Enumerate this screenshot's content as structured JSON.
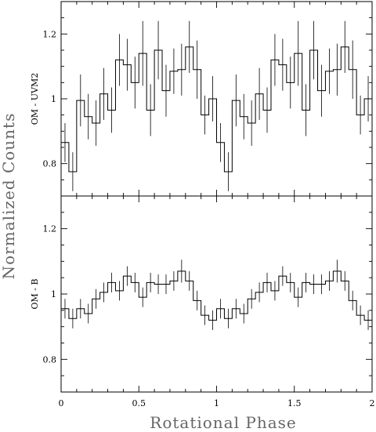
{
  "chart_data": {
    "type": "line",
    "title": "",
    "xlabel": "Rotational Phase",
    "ylabel": "Normalized Counts",
    "xlim": [
      0,
      2
    ],
    "x_ticks": [
      0,
      0.5,
      1,
      1.5,
      2
    ],
    "x_tick_labels": [
      "0",
      "0.5",
      "1",
      "1.5",
      "2"
    ],
    "style": "step-histogram-with-errorbars",
    "bins_per_cycle": 20,
    "cycles_shown": 2,
    "panels": [
      {
        "label": "OM - UVM2",
        "ylim": [
          0.7,
          1.3
        ],
        "y_ticks": [
          0.8,
          1,
          1.2
        ],
        "y_tick_labels": [
          "0.8",
          "1",
          "1.2"
        ],
        "phase_centers": [
          0.025,
          0.075,
          0.125,
          0.175,
          0.225,
          0.275,
          0.325,
          0.375,
          0.425,
          0.475,
          0.525,
          0.575,
          0.625,
          0.675,
          0.725,
          0.775,
          0.825,
          0.875,
          0.925,
          0.975
        ],
        "values": [
          0.865,
          0.775,
          0.995,
          0.945,
          0.925,
          1.015,
          0.965,
          1.12,
          1.105,
          1.05,
          1.14,
          0.965,
          1.15,
          1.025,
          1.085,
          1.09,
          1.16,
          1.09,
          0.95,
          1.0
        ],
        "errors": [
          0.06,
          0.06,
          0.08,
          0.07,
          0.07,
          0.08,
          0.07,
          0.08,
          0.08,
          0.08,
          0.1,
          0.08,
          0.09,
          0.08,
          0.07,
          0.08,
          0.08,
          0.09,
          0.06,
          0.07
        ]
      },
      {
        "label": "OM - B",
        "ylim": [
          0.7,
          1.3
        ],
        "y_ticks": [
          0.8,
          1,
          1.2
        ],
        "y_tick_labels": [
          "0.8",
          "1",
          "1.2"
        ],
        "phase_centers": [
          0.025,
          0.075,
          0.125,
          0.175,
          0.225,
          0.275,
          0.325,
          0.375,
          0.425,
          0.475,
          0.525,
          0.575,
          0.625,
          0.675,
          0.725,
          0.775,
          0.825,
          0.875,
          0.925,
          0.975
        ],
        "values": [
          0.955,
          0.925,
          0.955,
          0.94,
          0.985,
          1.005,
          1.035,
          1.01,
          1.055,
          1.035,
          0.99,
          1.035,
          1.03,
          1.03,
          1.04,
          1.07,
          1.04,
          0.98,
          0.935,
          0.92
        ],
        "errors": [
          0.03,
          0.03,
          0.03,
          0.03,
          0.03,
          0.03,
          0.03,
          0.03,
          0.03,
          0.03,
          0.03,
          0.03,
          0.03,
          0.03,
          0.03,
          0.035,
          0.03,
          0.03,
          0.03,
          0.03
        ]
      }
    ]
  }
}
